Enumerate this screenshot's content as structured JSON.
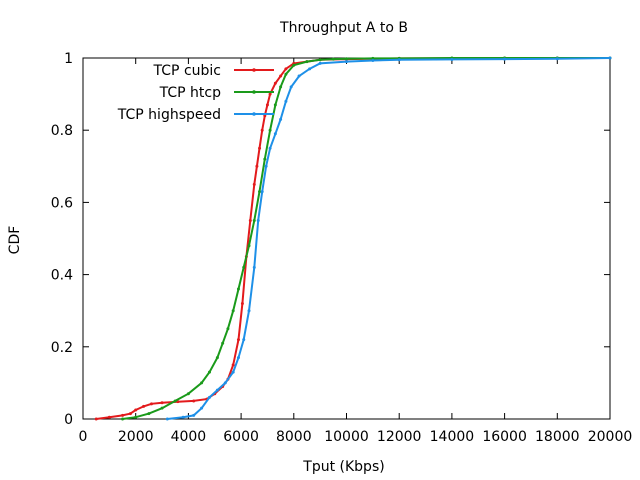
{
  "chart_data": {
    "type": "line",
    "title": "Throughput A to B",
    "xlabel": "Tput (Kbps)",
    "ylabel": "CDF",
    "xlim": [
      0,
      20000
    ],
    "ylim": [
      0,
      1
    ],
    "xticks": [
      0,
      2000,
      4000,
      6000,
      8000,
      10000,
      12000,
      14000,
      16000,
      18000,
      20000
    ],
    "yticks": [
      0,
      0.2,
      0.4,
      0.6,
      0.8,
      1
    ],
    "xtick_labels": [
      "0",
      "2000",
      "4000",
      "6000",
      "8000",
      "10000",
      "12000",
      "14000",
      "16000",
      "18000",
      "20000"
    ],
    "ytick_labels": [
      "0",
      "0.2",
      "0.4",
      "0.6",
      "0.8",
      "1"
    ],
    "grid": false,
    "legend_position": "top-left",
    "series": [
      {
        "name": "TCP cubic",
        "color": "#e31a1c",
        "x": [
          500,
          1000,
          1500,
          1800,
          2000,
          2300,
          2600,
          3000,
          3600,
          4200,
          4700,
          5000,
          5300,
          5500,
          5700,
          5900,
          6050,
          6200,
          6350,
          6500,
          6600,
          6700,
          6800,
          6900,
          7000,
          7100,
          7300,
          7500,
          7700,
          8000,
          8500,
          9000,
          10000,
          11000,
          12000,
          14000,
          16000,
          18000,
          20000
        ],
        "y": [
          0,
          0.005,
          0.01,
          0.015,
          0.025,
          0.035,
          0.042,
          0.045,
          0.048,
          0.05,
          0.055,
          0.07,
          0.09,
          0.11,
          0.15,
          0.22,
          0.32,
          0.45,
          0.55,
          0.65,
          0.7,
          0.75,
          0.8,
          0.84,
          0.87,
          0.9,
          0.93,
          0.95,
          0.97,
          0.985,
          0.99,
          0.995,
          0.997,
          0.998,
          0.999,
          0.999,
          1,
          1,
          1
        ]
      },
      {
        "name": "TCP htcp",
        "color": "#1a9a1a",
        "x": [
          1500,
          2000,
          2500,
          3000,
          3500,
          4000,
          4500,
          4800,
          5100,
          5300,
          5500,
          5700,
          5900,
          6100,
          6300,
          6500,
          6700,
          6900,
          7100,
          7300,
          7500,
          7700,
          8000,
          8500,
          9000,
          9500,
          10000,
          11000,
          12000,
          14000,
          16000,
          18000,
          20000
        ],
        "y": [
          0,
          0.005,
          0.015,
          0.03,
          0.05,
          0.07,
          0.1,
          0.13,
          0.17,
          0.21,
          0.25,
          0.3,
          0.36,
          0.42,
          0.48,
          0.55,
          0.63,
          0.72,
          0.8,
          0.87,
          0.92,
          0.955,
          0.98,
          0.99,
          0.995,
          0.997,
          0.998,
          0.999,
          0.999,
          1,
          1,
          1,
          1
        ]
      },
      {
        "name": "TCP highspeed",
        "color": "#1e90e8",
        "x": [
          3200,
          3800,
          4200,
          4500,
          4800,
          5100,
          5400,
          5700,
          5900,
          6100,
          6300,
          6500,
          6650,
          6800,
          6950,
          7100,
          7300,
          7500,
          7700,
          7900,
          8200,
          8600,
          9000,
          10000,
          11000,
          12000,
          14000,
          16000,
          18000,
          20000
        ],
        "y": [
          0,
          0.005,
          0.01,
          0.03,
          0.06,
          0.08,
          0.1,
          0.13,
          0.17,
          0.22,
          0.3,
          0.42,
          0.55,
          0.63,
          0.7,
          0.75,
          0.79,
          0.83,
          0.88,
          0.92,
          0.95,
          0.97,
          0.985,
          0.99,
          0.993,
          0.995,
          0.996,
          0.997,
          0.998,
          1
        ]
      }
    ]
  }
}
